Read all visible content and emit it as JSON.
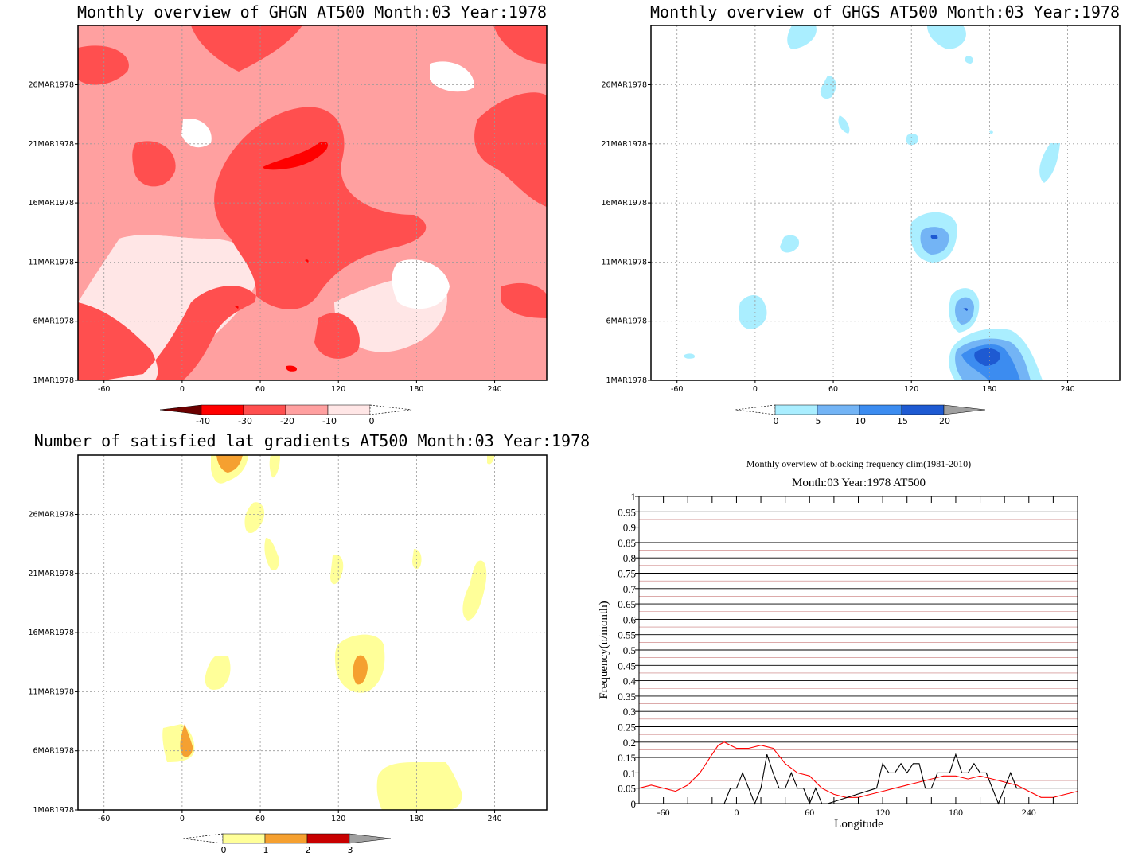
{
  "chart_data": [
    {
      "type": "heatmap",
      "title": "Monthly overview of GHGN AT500 Month:03 Year:1978",
      "x_ticks": [
        "-60",
        "0",
        "60",
        "120",
        "180",
        "240"
      ],
      "y_ticks": [
        "1MAR1978",
        "6MAR1978",
        "11MAR1978",
        "16MAR1978",
        "21MAR1978",
        "26MAR1978"
      ],
      "xlim": [
        -80,
        280
      ],
      "colorbar": {
        "labels": [
          "-40",
          "-30",
          "-20",
          "-10",
          "0"
        ],
        "colors": [
          "#6b0000",
          "#ff0000",
          "#ff4f4f",
          "#ffa0a0",
          "#ffe6e6"
        ]
      }
    },
    {
      "type": "heatmap",
      "title": "Monthly overview of GHGS AT500 Month:03 Year:1978",
      "x_ticks": [
        "-60",
        "0",
        "60",
        "120",
        "180",
        "240"
      ],
      "y_ticks": [
        "1MAR1978",
        "6MAR1978",
        "11MAR1978",
        "16MAR1978",
        "21MAR1978",
        "26MAR1978"
      ],
      "xlim": [
        -80,
        280
      ],
      "colorbar": {
        "labels": [
          "0",
          "5",
          "10",
          "15",
          "20"
        ],
        "colors": [
          "#aaeeff",
          "#73b4f5",
          "#3c8cf0",
          "#1e5ad2",
          "#a0a0a0"
        ]
      }
    },
    {
      "type": "heatmap",
      "title": "Number of satisfied lat gradients AT500 Month:03 Year:1978",
      "x_ticks": [
        "-60",
        "0",
        "60",
        "120",
        "180",
        "240"
      ],
      "y_ticks": [
        "1MAR1978",
        "6MAR1978",
        "11MAR1978",
        "16MAR1978",
        "21MAR1978",
        "26MAR1978"
      ],
      "xlim": [
        -80,
        280
      ],
      "colorbar": {
        "labels": [
          "0",
          "1",
          "2",
          "3"
        ],
        "colors": [
          "#ffff99",
          "#f5a030",
          "#c80000",
          "#a0a0a0"
        ]
      }
    },
    {
      "type": "line",
      "title": "Monthly overview of blocking frequency clim(1981-2010)",
      "subtitle": "Month:03 Year:1978  AT500",
      "xlabel": "Longitude",
      "ylabel": "Frequency(n/month)",
      "xlim": [
        -80,
        280
      ],
      "ylim": [
        0,
        1
      ],
      "x_ticks": [
        "-60",
        "0",
        "60",
        "120",
        "180",
        "240"
      ],
      "y_ticks": [
        "0",
        "0.05",
        "0.1",
        "0.15",
        "0.2",
        "0.25",
        "0.3",
        "0.35",
        "0.4",
        "0.45",
        "0.5",
        "0.55",
        "0.6",
        "0.65",
        "0.7",
        "0.75",
        "0.8",
        "0.85",
        "0.9",
        "0.95",
        "1"
      ],
      "grid": true,
      "series": [
        {
          "color": "#ff0000",
          "x": [
            -80,
            -70,
            -60,
            -50,
            -40,
            -30,
            -20,
            -15,
            -10,
            -5,
            0,
            10,
            20,
            30,
            40,
            50,
            60,
            70,
            80,
            90,
            100,
            110,
            120,
            130,
            140,
            150,
            160,
            170,
            180,
            190,
            200,
            210,
            220,
            230,
            240,
            250,
            260,
            270,
            280
          ],
          "y": [
            0.05,
            0.06,
            0.05,
            0.04,
            0.06,
            0.1,
            0.16,
            0.19,
            0.2,
            0.19,
            0.18,
            0.18,
            0.19,
            0.18,
            0.13,
            0.1,
            0.09,
            0.05,
            0.03,
            0.02,
            0.02,
            0.03,
            0.04,
            0.05,
            0.06,
            0.07,
            0.08,
            0.09,
            0.09,
            0.08,
            0.09,
            0.08,
            0.07,
            0.06,
            0.04,
            0.02,
            0.02,
            0.03,
            0.04
          ]
        },
        {
          "color": "#000000",
          "x": [
            -10,
            -5,
            0,
            5,
            10,
            15,
            20,
            25,
            30,
            35,
            40,
            45,
            50,
            55,
            60,
            65,
            70,
            75,
            115,
            120,
            125,
            130,
            135,
            140,
            145,
            150,
            155,
            160,
            165,
            170,
            175,
            180,
            185,
            190,
            195,
            200,
            205,
            210,
            215,
            220,
            225,
            230,
            235
          ],
          "y": [
            0,
            0.05,
            0.05,
            0.1,
            0.05,
            0,
            0.05,
            0.16,
            0.1,
            0.05,
            0.05,
            0.1,
            0.05,
            0.05,
            0,
            0.05,
            0,
            0,
            0.05,
            0.13,
            0.1,
            0.1,
            0.13,
            0.1,
            0.13,
            0.13,
            0.05,
            0.05,
            0.1,
            0.1,
            0.1,
            0.16,
            0.1,
            0.1,
            0.13,
            0.1,
            0.1,
            0.05,
            0,
            0.05,
            0.1,
            0.05,
            0.05
          ]
        }
      ]
    }
  ]
}
